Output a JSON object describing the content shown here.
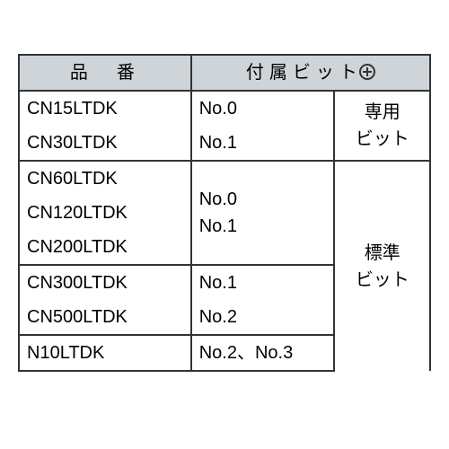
{
  "table": {
    "header": {
      "part_number": "品　番",
      "included_bit": "付属ビット"
    },
    "groups": [
      {
        "parts": [
          "CN15LTDK",
          "CN30LTDK"
        ],
        "bits": [
          "No.0",
          "No.1"
        ],
        "type_label": "専用\nビット"
      },
      {
        "parts": [
          "CN60LTDK",
          "CN120LTDK",
          "CN200LTDK"
        ],
        "bits": [
          "No.0",
          "No.1"
        ],
        "type_label": "標準\nビット"
      },
      {
        "parts": [
          "CN300LTDK",
          "CN500LTDK"
        ],
        "bits": [
          "No.1",
          "No.2"
        ]
      },
      {
        "parts": [
          "N10LTDK"
        ],
        "bits_combined": "No.2、No.3"
      }
    ],
    "colors": {
      "header_bg": "#cfd4d8",
      "border": "#333333",
      "text": "#222222",
      "bg": "#ffffff"
    },
    "font_size": 20,
    "border_width": 2
  }
}
